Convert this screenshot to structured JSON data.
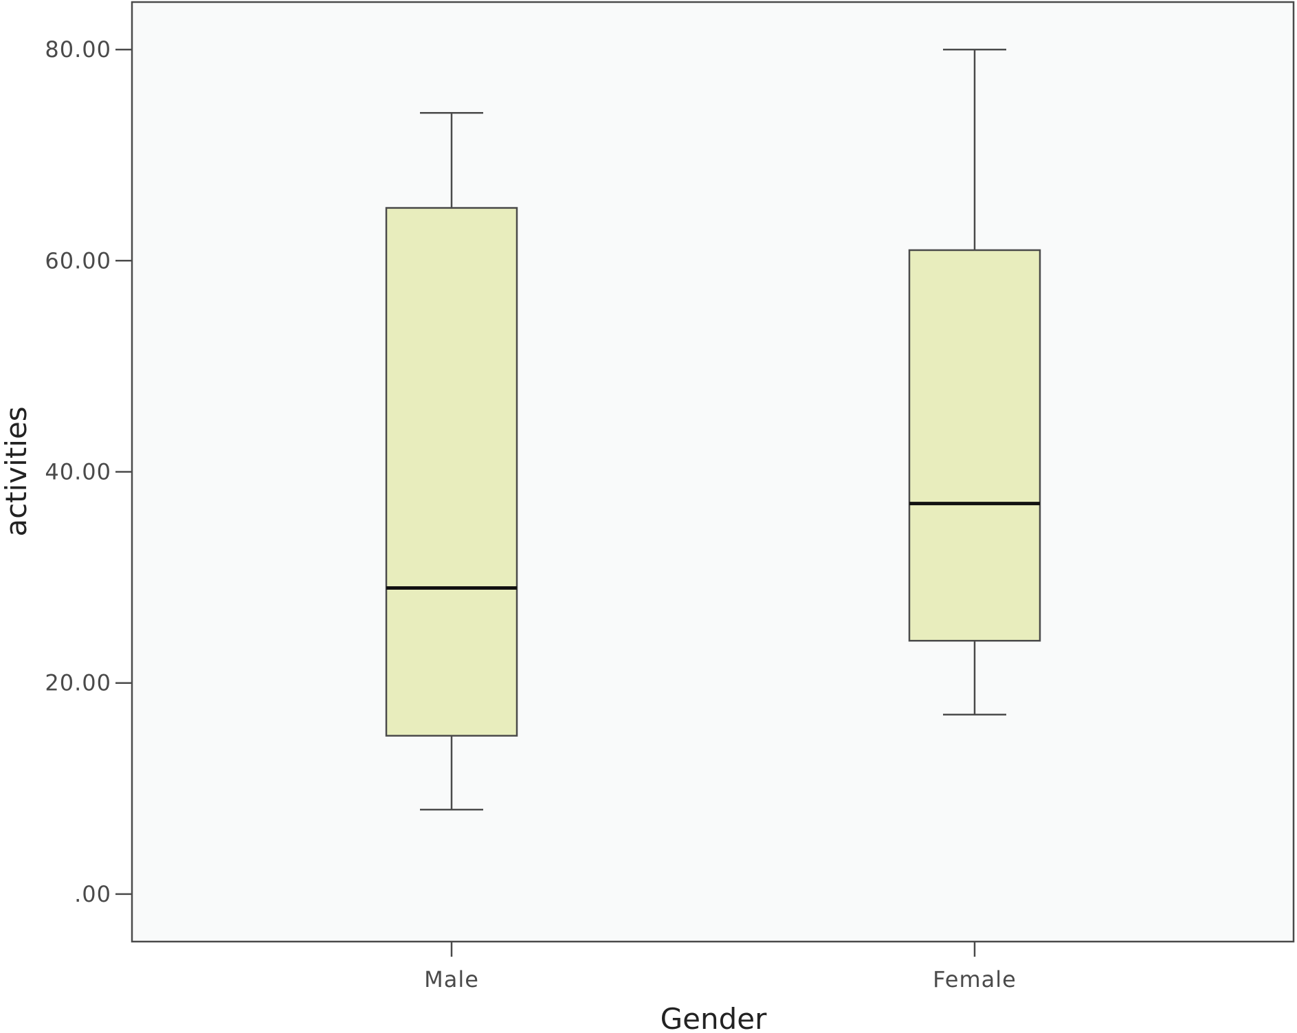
{
  "chart_data": {
    "type": "boxplot",
    "title": "",
    "xlabel": "Gender",
    "ylabel": "activities",
    "ylim": [
      -4.5,
      84.5
    ],
    "y_ticks": [
      {
        "value": 0,
        "label": ".00"
      },
      {
        "value": 20,
        "label": "20.00"
      },
      {
        "value": 40,
        "label": "40.00"
      },
      {
        "value": 60,
        "label": "60.00"
      },
      {
        "value": 80,
        "label": "80.00"
      }
    ],
    "categories": [
      "Male",
      "Female"
    ],
    "boxes": [
      {
        "category": "Male",
        "whisker_low": 8,
        "q1": 15,
        "median": 29,
        "q3": 65,
        "whisker_high": 74
      },
      {
        "category": "Female",
        "whisker_low": 17,
        "q1": 24,
        "median": 37,
        "q3": 61,
        "whisker_high": 80
      }
    ],
    "grid": false,
    "legend": "none",
    "colors": {
      "plot_background": "#f9fafa",
      "box_fill": "#e8edbd",
      "box_stroke": "#4a4a4a",
      "median": "#111111",
      "axis": "#4a4a4a"
    }
  }
}
